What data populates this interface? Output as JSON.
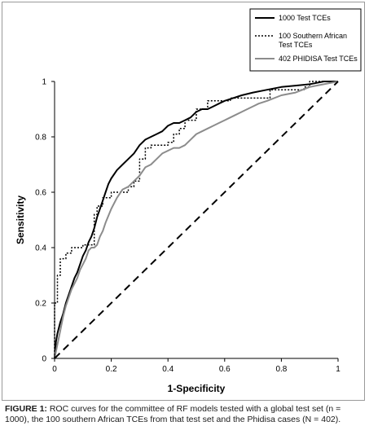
{
  "caption": {
    "label": "FIGURE 1:",
    "text": "ROC curves for the committee of RF models tested with a global test set (n = 1000), the 100 southern African TCEs from that test set and the Phidisa cases (N = 402)."
  },
  "chart_data": {
    "type": "line",
    "title": "",
    "xlabel": "1-Specificity",
    "ylabel": "Sensitivity",
    "xlim": [
      0,
      1
    ],
    "ylim": [
      0,
      1
    ],
    "xticks": [
      "0",
      "0.2",
      "0.4",
      "0.6",
      "0.8",
      "1"
    ],
    "yticks": [
      "0",
      "0.2",
      "0.4",
      "0.6",
      "0.8",
      "1"
    ],
    "grid": false,
    "legend_position": "top-right",
    "series": [
      {
        "name": "1000 Test TCEs",
        "style": "solid",
        "color": "#000000",
        "width": 2,
        "x": [
          0,
          0.005,
          0.01,
          0.02,
          0.03,
          0.04,
          0.05,
          0.06,
          0.07,
          0.08,
          0.09,
          0.1,
          0.11,
          0.12,
          0.13,
          0.14,
          0.15,
          0.16,
          0.17,
          0.18,
          0.19,
          0.2,
          0.22,
          0.24,
          0.26,
          0.28,
          0.3,
          0.32,
          0.34,
          0.36,
          0.38,
          0.4,
          0.42,
          0.44,
          0.46,
          0.48,
          0.5,
          0.52,
          0.54,
          0.56,
          0.58,
          0.6,
          0.63,
          0.66,
          0.7,
          0.75,
          0.8,
          0.85,
          0.9,
          0.95,
          1
        ],
        "y": [
          0,
          0.06,
          0.09,
          0.13,
          0.16,
          0.2,
          0.23,
          0.26,
          0.29,
          0.31,
          0.34,
          0.37,
          0.39,
          0.42,
          0.44,
          0.47,
          0.51,
          0.54,
          0.57,
          0.6,
          0.63,
          0.65,
          0.68,
          0.7,
          0.72,
          0.74,
          0.77,
          0.79,
          0.8,
          0.81,
          0.82,
          0.84,
          0.85,
          0.85,
          0.86,
          0.87,
          0.89,
          0.9,
          0.9,
          0.91,
          0.92,
          0.93,
          0.94,
          0.95,
          0.96,
          0.97,
          0.98,
          0.985,
          0.99,
          1,
          1
        ]
      },
      {
        "name": "100 Southern African Test TCEs",
        "style": "dotted",
        "color": "#000000",
        "width": 1.5,
        "x": [
          0,
          0,
          0.01,
          0.01,
          0.02,
          0.02,
          0.04,
          0.04,
          0.06,
          0.06,
          0.1,
          0.1,
          0.14,
          0.14,
          0.15,
          0.15,
          0.17,
          0.17,
          0.2,
          0.2,
          0.26,
          0.26,
          0.28,
          0.28,
          0.3,
          0.3,
          0.32,
          0.32,
          0.34,
          0.34,
          0.4,
          0.4,
          0.42,
          0.42,
          0.44,
          0.44,
          0.46,
          0.46,
          0.5,
          0.5,
          0.54,
          0.54,
          0.62,
          0.62,
          0.76,
          0.76,
          0.88,
          0.88,
          0.9,
          0.9,
          1
        ],
        "y": [
          0,
          0.2,
          0.2,
          0.3,
          0.3,
          0.36,
          0.36,
          0.38,
          0.38,
          0.4,
          0.4,
          0.41,
          0.41,
          0.52,
          0.52,
          0.55,
          0.55,
          0.58,
          0.58,
          0.6,
          0.6,
          0.62,
          0.62,
          0.64,
          0.64,
          0.72,
          0.72,
          0.76,
          0.76,
          0.77,
          0.77,
          0.78,
          0.78,
          0.81,
          0.81,
          0.83,
          0.83,
          0.86,
          0.86,
          0.9,
          0.9,
          0.93,
          0.93,
          0.94,
          0.94,
          0.97,
          0.97,
          0.98,
          0.98,
          1,
          1
        ]
      },
      {
        "name": "402 PHIDISA Test TCEs",
        "style": "solid",
        "color": "#8c8c8c",
        "width": 2,
        "x": [
          0,
          0.01,
          0.02,
          0.03,
          0.04,
          0.05,
          0.06,
          0.07,
          0.08,
          0.09,
          0.1,
          0.11,
          0.12,
          0.13,
          0.14,
          0.15,
          0.16,
          0.17,
          0.18,
          0.2,
          0.22,
          0.24,
          0.26,
          0.28,
          0.3,
          0.32,
          0.34,
          0.36,
          0.38,
          0.4,
          0.42,
          0.44,
          0.46,
          0.48,
          0.5,
          0.52,
          0.54,
          0.56,
          0.58,
          0.6,
          0.62,
          0.64,
          0.66,
          0.68,
          0.7,
          0.72,
          0.75,
          0.8,
          0.85,
          0.9,
          0.95,
          1
        ],
        "y": [
          0,
          0.05,
          0.1,
          0.15,
          0.19,
          0.22,
          0.25,
          0.27,
          0.29,
          0.32,
          0.34,
          0.36,
          0.39,
          0.4,
          0.4,
          0.41,
          0.44,
          0.46,
          0.49,
          0.54,
          0.58,
          0.61,
          0.62,
          0.64,
          0.66,
          0.69,
          0.7,
          0.72,
          0.74,
          0.75,
          0.76,
          0.76,
          0.77,
          0.79,
          0.81,
          0.82,
          0.83,
          0.84,
          0.85,
          0.86,
          0.87,
          0.88,
          0.89,
          0.9,
          0.91,
          0.92,
          0.93,
          0.95,
          0.96,
          0.98,
          0.99,
          1
        ]
      },
      {
        "name": "",
        "style": "dashed",
        "color": "#000000",
        "width": 2,
        "x": [
          0,
          1
        ],
        "y": [
          0,
          1
        ]
      }
    ],
    "legend": [
      {
        "series": 0,
        "lines": [
          "1000 Test TCEs"
        ]
      },
      {
        "series": 1,
        "lines": [
          "100 Southern African",
          "Test TCEs"
        ]
      },
      {
        "series": 2,
        "lines": [
          "402 PHIDISA Test TCEs"
        ]
      }
    ]
  }
}
